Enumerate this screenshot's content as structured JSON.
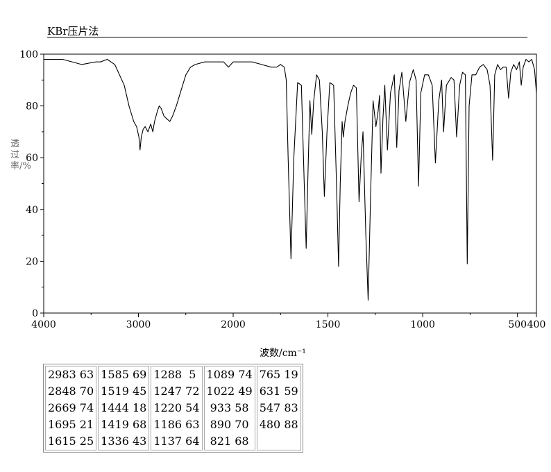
{
  "header": {
    "title": "KBr压片法"
  },
  "chart_data": {
    "type": "line",
    "title": "KBr压片法",
    "xlabel": "波数/cm⁻¹",
    "ylabel": "透过率/%",
    "xlim": [
      4000,
      400
    ],
    "ylim": [
      0,
      100
    ],
    "x_ticks": [
      4000,
      3000,
      2000,
      1500,
      1000,
      500,
      400
    ],
    "x_tick_labels": [
      "4000",
      "3000",
      "2000",
      "1500",
      "1000",
      "500",
      "400"
    ],
    "y_ticks": [
      0,
      20,
      40,
      60,
      80,
      100
    ],
    "y_tick_labels": [
      "0",
      "20",
      "40",
      "60",
      "80",
      "100"
    ],
    "grid": false,
    "x": [
      4000,
      3800,
      3600,
      3450,
      3400,
      3330,
      3250,
      3200,
      3150,
      3100,
      3050,
      3020,
      2995,
      2983,
      2970,
      2950,
      2930,
      2900,
      2870,
      2848,
      2830,
      2800,
      2780,
      2760,
      2730,
      2700,
      2669,
      2640,
      2600,
      2550,
      2500,
      2450,
      2400,
      2300,
      2200,
      2100,
      2050,
      2000,
      1950,
      1900,
      1850,
      1800,
      1770,
      1750,
      1730,
      1720,
      1710,
      1695,
      1680,
      1660,
      1640,
      1625,
      1615,
      1605,
      1595,
      1585,
      1575,
      1560,
      1545,
      1530,
      1519,
      1505,
      1490,
      1470,
      1455,
      1444,
      1435,
      1425,
      1419,
      1410,
      1395,
      1380,
      1365,
      1350,
      1336,
      1325,
      1315,
      1300,
      1288,
      1275,
      1262,
      1247,
      1235,
      1228,
      1220,
      1210,
      1200,
      1186,
      1170,
      1150,
      1137,
      1125,
      1110,
      1089,
      1070,
      1050,
      1035,
      1022,
      1010,
      990,
      970,
      950,
      933,
      915,
      900,
      890,
      875,
      850,
      835,
      821,
      805,
      790,
      775,
      765,
      755,
      740,
      720,
      700,
      680,
      660,
      645,
      631,
      620,
      605,
      590,
      575,
      560,
      547,
      535,
      520,
      505,
      490,
      480,
      470,
      455,
      440,
      425,
      410,
      400
    ],
    "series": [
      {
        "values": [
          98,
          98,
          96,
          97,
          97,
          98,
          96,
          92,
          88,
          80,
          74,
          72,
          68,
          63,
          68,
          71,
          72,
          70,
          73,
          70,
          74,
          78,
          80,
          79,
          76,
          75,
          74,
          76,
          80,
          86,
          92,
          95,
          96,
          97,
          97,
          97,
          95,
          97,
          97,
          97,
          96,
          95,
          95,
          96,
          95,
          90,
          60,
          21,
          60,
          89,
          88,
          50,
          25,
          55,
          82,
          69,
          82,
          92,
          90,
          70,
          45,
          70,
          89,
          88,
          50,
          18,
          50,
          74,
          68,
          74,
          80,
          85,
          88,
          87,
          43,
          60,
          70,
          30,
          5,
          45,
          82,
          72,
          78,
          84,
          54,
          75,
          88,
          63,
          85,
          92,
          64,
          86,
          93,
          74,
          89,
          94,
          90,
          49,
          85,
          92,
          92,
          88,
          58,
          82,
          90,
          70,
          88,
          91,
          90,
          68,
          88,
          93,
          92,
          19,
          80,
          92,
          92,
          95,
          96,
          94,
          88,
          59,
          92,
          96,
          94,
          95,
          95,
          83,
          93,
          96,
          94,
          97,
          88,
          95,
          98,
          97,
          98,
          94,
          85
        ]
      }
    ]
  },
  "peak_table": [
    [
      "2983 63",
      "2848 70",
      "2669 74",
      "1695 21",
      "1615 25"
    ],
    [
      "1585 69",
      "1519 45",
      "1444 18",
      "1419 68",
      "1336 43"
    ],
    [
      "1288  5",
      "1247 72",
      "1220 54",
      "1186 63",
      "1137 64"
    ],
    [
      "1089 74",
      "1022 49",
      " 933 58",
      " 890 70",
      " 821 68"
    ],
    [
      "765 19",
      "631 59",
      "547 83",
      "480 88"
    ]
  ]
}
